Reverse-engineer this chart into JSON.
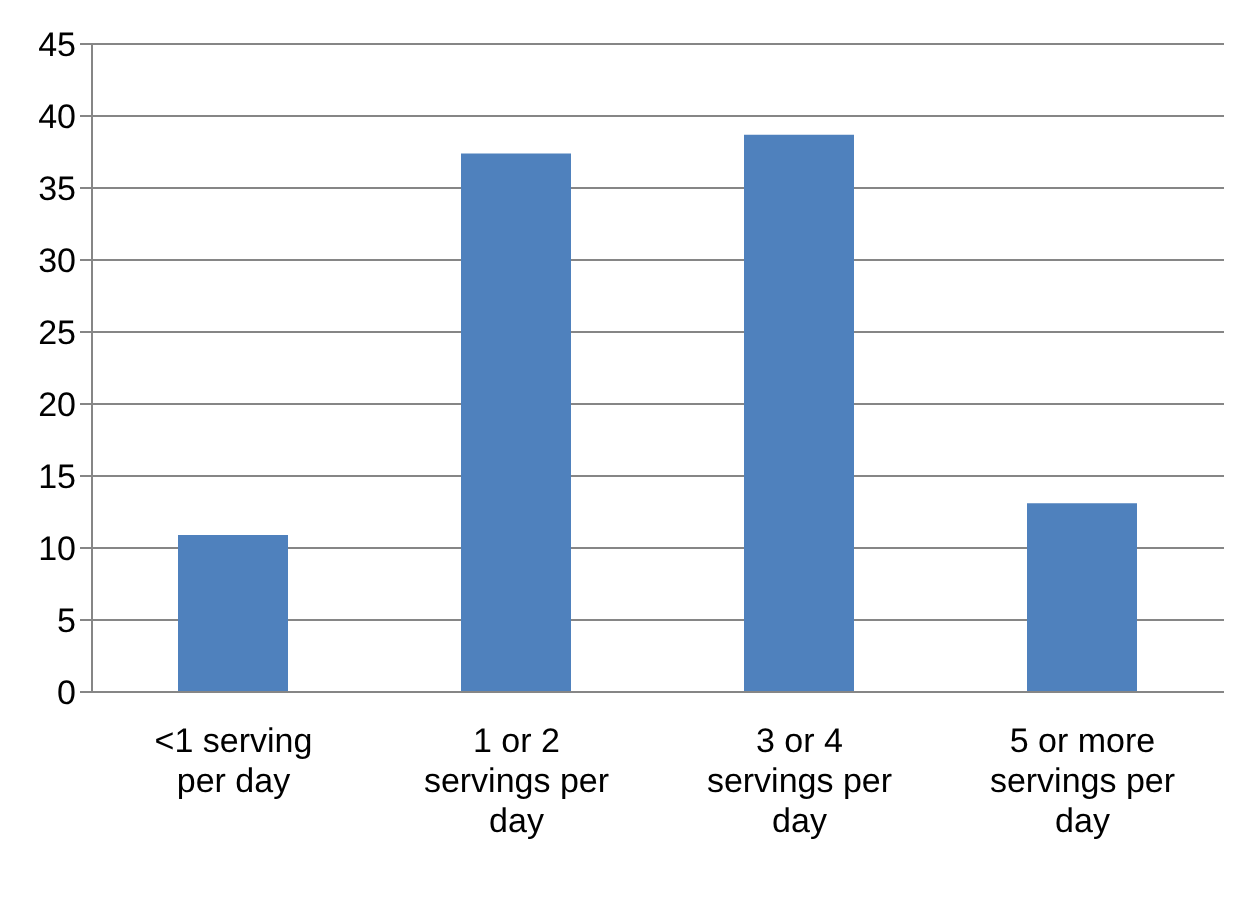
{
  "chart_data": {
    "type": "bar",
    "categories": [
      "<1 serving per day",
      "1 or 2 servings per day",
      "3 or 4 servings per day",
      "5 or more servings per day"
    ],
    "values": [
      10.9,
      37.4,
      38.7,
      13.1
    ],
    "color": "#4f81bd",
    "ylim": [
      0,
      45
    ],
    "yticks": [
      0,
      5,
      10,
      15,
      20,
      25,
      30,
      35,
      40,
      45
    ],
    "grid": "y"
  }
}
